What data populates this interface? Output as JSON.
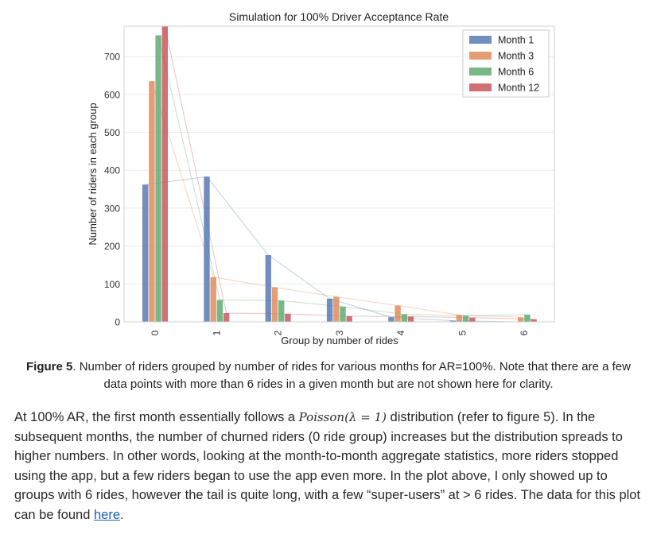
{
  "chart_data": {
    "type": "bar",
    "title": "Simulation for 100% Driver Acceptance Rate",
    "xlabel": "Group by number of rides",
    "ylabel": "Number of riders in each group",
    "categories": [
      "0",
      "1",
      "2",
      "3",
      "4",
      "5",
      "6"
    ],
    "ylim": [
      0,
      780
    ],
    "yticks": [
      0,
      100,
      200,
      300,
      400,
      500,
      600,
      700
    ],
    "grid": true,
    "legend_position": "top-right",
    "series": [
      {
        "name": "Month 1",
        "color": "#4c72b0",
        "values": [
          362,
          383,
          176,
          61,
          12,
          3,
          0
        ]
      },
      {
        "name": "Month 3",
        "color": "#dd8452",
        "values": [
          635,
          118,
          91,
          66,
          43,
          18,
          12
        ]
      },
      {
        "name": "Month 6",
        "color": "#55a868",
        "values": [
          756,
          58,
          56,
          40,
          20,
          16,
          19
        ]
      },
      {
        "name": "Month 12",
        "color": "#c44e52",
        "values": [
          780,
          23,
          21,
          15,
          14,
          11,
          7
        ]
      }
    ]
  },
  "caption": {
    "figure_label": "Figure 5",
    "text": ". Number of riders grouped by number of rides for various months for AR=100%. Note that there are a few data points with more than 6 rides in a given month but are not shown here for clarity."
  },
  "body": {
    "part1": "At 100% AR, the first month essentially follows a ",
    "math": "Poisson(λ = 1)",
    "part2": " distribution (refer to figure 5). In the subsequent months, the number of churned riders (0 ride group) increases but the distribution spreads to higher numbers. In other words, looking at the month-to-month aggregate statistics, more riders stopped using the app, but a few riders began to use the app even more. In the plot above, I only showed up to groups with 6 rides, however the tail is quite long, with a few “super-users” at > 6 rides. The data for this plot can be found ",
    "link_text": "here",
    "end": "."
  }
}
